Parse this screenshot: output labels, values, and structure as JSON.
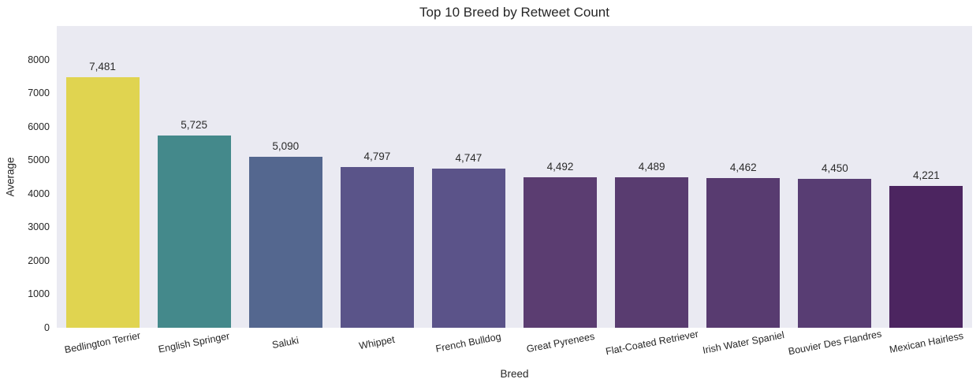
{
  "figure": {
    "background": "#ffffff",
    "plot_background": "#eaeaf2",
    "text_color": "#262626"
  },
  "chart_data": {
    "type": "bar",
    "title": "Top 10 Breed by Retweet Count",
    "xlabel": "Breed",
    "ylabel": "Average",
    "categories": [
      "Bedlington Terrier",
      "English Springer",
      "Saluki",
      "Whippet",
      "French Bulldog",
      "Great Pyrenees",
      "Flat-Coated Retriever",
      "Irish Water Spaniel",
      "Bouvier Des Flandres",
      "Mexican Hairless"
    ],
    "values": [
      7481,
      5725,
      5090,
      4797,
      4747,
      4492,
      4489,
      4462,
      4450,
      4221
    ],
    "value_labels": [
      "7,481",
      "5,725",
      "5,090",
      "4,797",
      "4,747",
      "4,492",
      "4,489",
      "4,462",
      "4,450",
      "4,221"
    ],
    "bar_colors": [
      "#e0d450",
      "#44898b",
      "#54678f",
      "#5a5489",
      "#5b5389",
      "#5b3d71",
      "#593c70",
      "#583b70",
      "#583d73",
      "#4c2560"
    ],
    "yticks": [
      0,
      1000,
      2000,
      3000,
      4000,
      5000,
      6000,
      7000,
      8000
    ],
    "ylim": [
      0,
      9000
    ],
    "grid": false,
    "legend_position": "none",
    "x_tick_rotation_deg": -11
  }
}
